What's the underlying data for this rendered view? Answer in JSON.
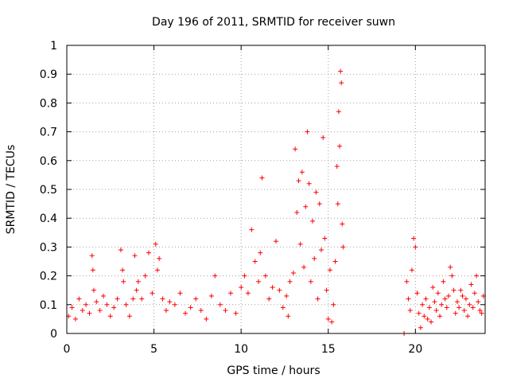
{
  "chart_data": {
    "type": "scatter",
    "title": "Day 196 of 2011, SRMTID for receiver suwn",
    "xlabel": "GPS time / hours",
    "ylabel": "SRMTID / TECUs",
    "xlim": [
      0,
      24
    ],
    "ylim": [
      0,
      1
    ],
    "xticks": [
      0,
      5,
      10,
      15,
      20
    ],
    "yticks": [
      0,
      0.1,
      0.2,
      0.3,
      0.4,
      0.5,
      0.6,
      0.7,
      0.8,
      0.9,
      1
    ],
    "xtick_labels": [
      "0",
      "5",
      "10",
      "15",
      "20"
    ],
    "ytick_labels": [
      "0",
      "0.1",
      "0.2",
      "0.3",
      "0.4",
      "0.5",
      "0.6",
      "0.7",
      "0.8",
      "0.9",
      "1"
    ],
    "grid": true,
    "marker": "+",
    "color": "#ff0000",
    "series": [
      {
        "name": "SRMTID",
        "x": [
          0.1,
          0.3,
          0.5,
          0.7,
          0.9,
          1.1,
          1.3,
          1.45,
          1.5,
          1.55,
          1.7,
          1.9,
          2.1,
          2.3,
          2.5,
          2.7,
          2.9,
          3.1,
          3.2,
          3.25,
          3.4,
          3.6,
          3.8,
          3.9,
          4.0,
          4.1,
          4.3,
          4.5,
          4.7,
          4.9,
          5.1,
          5.2,
          5.3,
          5.5,
          5.7,
          5.9,
          6.2,
          6.5,
          6.8,
          7.1,
          7.4,
          7.7,
          8.0,
          8.3,
          8.5,
          8.8,
          9.1,
          9.4,
          9.7,
          10.0,
          10.2,
          10.4,
          10.6,
          10.8,
          11.0,
          11.1,
          11.2,
          11.4,
          11.6,
          11.8,
          12.0,
          12.2,
          12.4,
          12.6,
          12.7,
          12.8,
          13.0,
          13.1,
          13.2,
          13.3,
          13.4,
          13.5,
          13.6,
          13.7,
          13.8,
          13.9,
          14.0,
          14.1,
          14.2,
          14.3,
          14.4,
          14.5,
          14.6,
          14.7,
          14.8,
          14.9,
          15.0,
          15.1,
          15.2,
          15.3,
          15.4,
          15.5,
          15.55,
          15.6,
          15.65,
          15.7,
          15.75,
          15.8,
          15.85,
          19.35,
          19.5,
          19.6,
          19.7,
          19.8,
          19.9,
          20.0,
          20.1,
          20.2,
          20.3,
          20.4,
          20.5,
          20.6,
          20.7,
          20.8,
          20.9,
          21.0,
          21.1,
          21.2,
          21.3,
          21.4,
          21.5,
          21.6,
          21.7,
          21.8,
          21.9,
          22.0,
          22.1,
          22.2,
          22.3,
          22.4,
          22.5,
          22.6,
          22.7,
          22.8,
          22.9,
          23.0,
          23.1,
          23.2,
          23.3,
          23.4,
          23.5,
          23.6,
          23.7,
          23.8,
          23.9
        ],
        "y": [
          0.06,
          0.09,
          0.05,
          0.12,
          0.08,
          0.1,
          0.07,
          0.27,
          0.22,
          0.15,
          0.11,
          0.08,
          0.13,
          0.1,
          0.06,
          0.09,
          0.12,
          0.29,
          0.22,
          0.18,
          0.1,
          0.06,
          0.12,
          0.27,
          0.15,
          0.18,
          0.12,
          0.2,
          0.28,
          0.14,
          0.31,
          0.22,
          0.26,
          0.12,
          0.08,
          0.11,
          0.1,
          0.14,
          0.07,
          0.09,
          0.12,
          0.08,
          0.05,
          0.13,
          0.2,
          0.1,
          0.08,
          0.14,
          0.07,
          0.16,
          0.2,
          0.14,
          0.36,
          0.25,
          0.18,
          0.28,
          0.54,
          0.2,
          0.12,
          0.16,
          0.32,
          0.15,
          0.09,
          0.13,
          0.06,
          0.18,
          0.21,
          0.64,
          0.42,
          0.53,
          0.31,
          0.56,
          0.23,
          0.44,
          0.7,
          0.52,
          0.18,
          0.39,
          0.26,
          0.49,
          0.12,
          0.45,
          0.29,
          0.68,
          0.33,
          0.15,
          0.05,
          0.22,
          0.04,
          0.1,
          0.25,
          0.58,
          0.45,
          0.77,
          0.65,
          0.91,
          0.87,
          0.38,
          0.3,
          0.0,
          0.18,
          0.12,
          0.08,
          0.22,
          0.33,
          0.3,
          0.14,
          0.07,
          0.02,
          0.1,
          0.06,
          0.12,
          0.05,
          0.09,
          0.04,
          0.16,
          0.11,
          0.08,
          0.14,
          0.06,
          0.1,
          0.18,
          0.12,
          0.09,
          0.13,
          0.23,
          0.2,
          0.15,
          0.07,
          0.11,
          0.09,
          0.15,
          0.13,
          0.08,
          0.12,
          0.06,
          0.1,
          0.17,
          0.09,
          0.14,
          0.2,
          0.11,
          0.08,
          0.07,
          0.13
        ]
      }
    ]
  }
}
